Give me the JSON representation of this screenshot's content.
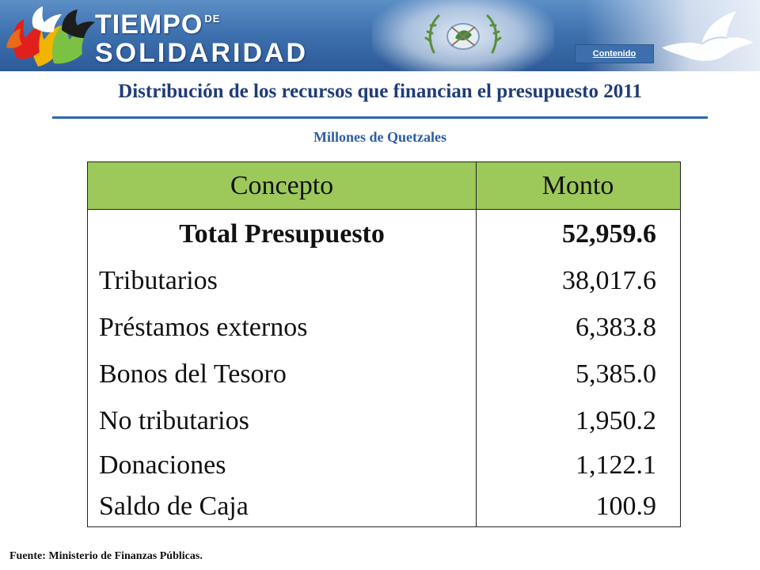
{
  "header": {
    "logo": {
      "line1": "TIEMPO",
      "line1_small": "DE",
      "line2": "SOLIDARIDAD"
    },
    "contenido_link": "Contenido",
    "icons": [
      "hands-icon",
      "emblem-icon",
      "dove-icon"
    ]
  },
  "title": "Distribución de los recursos que financian el presupuesto 2011",
  "subtitle": "Millones de Quetzales",
  "table": {
    "header": {
      "concepto": "Concepto",
      "monto": "Monto"
    },
    "rows": [
      {
        "concepto": "Total Presupuesto",
        "monto": "52,959.6"
      },
      {
        "concepto": "Tributarios",
        "monto": "38,017.6"
      },
      {
        "concepto": "Préstamos externos",
        "monto": "6,383.8"
      },
      {
        "concepto": "Bonos del Tesoro",
        "monto": "5,385.0"
      },
      {
        "concepto": "No tributarios",
        "monto": "1,950.2"
      },
      {
        "concepto": "Donaciones",
        "monto": "1,122.1"
      },
      {
        "concepto": "Saldo de Caja",
        "monto": "100.9"
      }
    ]
  },
  "footer": "Fuente: Ministerio de Finanzas Públicas.",
  "colors": {
    "banner": "#3f72b0",
    "title": "#1f3c78",
    "subtitle": "#2c5ea6",
    "rule": "#2a69b3",
    "table_header": "#9cc95a"
  }
}
